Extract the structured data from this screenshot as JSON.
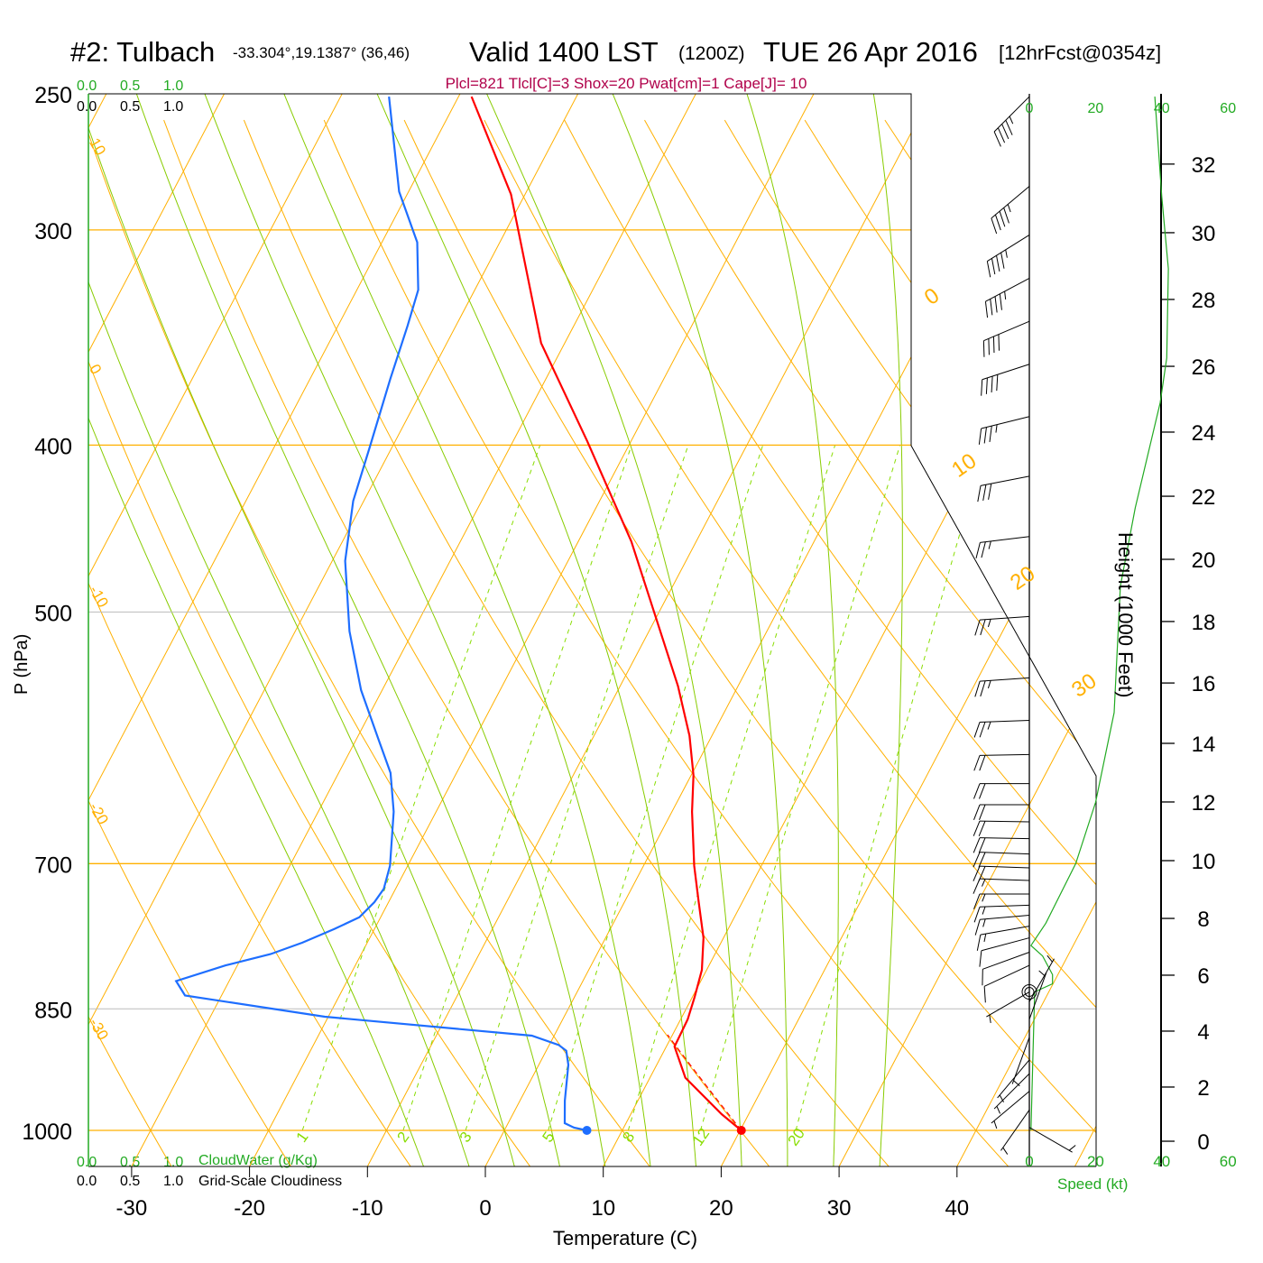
{
  "title": {
    "station": "#2: Tulbach",
    "coords": "-33.304°,19.1387° (36,46)",
    "valid": "Valid 1400 LST",
    "utc": "(1200Z)",
    "date": "TUE 26 Apr 2016",
    "forecast": "[12hrFcst@0354z]"
  },
  "indices": "Plcl=821 Tlcl[C]=3 Shox=20 Pwat[cm]=1 Cape[J]= 10",
  "cloud_axis": {
    "ticks": [
      "0.0",
      "0.5",
      "1.0"
    ],
    "cloudwater_label": "CloudWater (g/Kg)",
    "cloudiness_label": "Grid-Scale Cloudiness"
  },
  "colors": {
    "temperature": "#ff0000",
    "dewpoint": "#1e6eff",
    "isotherm": "#ffb000",
    "moist_adiabat": "#88cc00",
    "mixing_ratio": "#88dd00",
    "speed": "#22aa22",
    "indices": "#b0004a"
  },
  "chart_data": {
    "type": "skew-t",
    "xlabel": "Temperature (C)",
    "ylabel": "P (hPa)",
    "xlim": [
      -33.6,
      48
    ],
    "ylim": [
      1049,
      250
    ],
    "xticks": [
      -30,
      -20,
      -10,
      0,
      10,
      20,
      30,
      40
    ],
    "yticks": [
      250,
      300,
      400,
      500,
      700,
      850,
      1000
    ],
    "isobars_orange": [
      300,
      400,
      700,
      1000
    ],
    "isobars_gray": [
      500,
      850
    ],
    "isotherm_labels": [
      {
        "T": 0,
        "p": 332,
        "label": "0"
      },
      {
        "T": 10,
        "p": 418,
        "label": "10"
      },
      {
        "T": 20,
        "p": 486,
        "label": "20"
      },
      {
        "T": 30,
        "p": 561,
        "label": "30"
      }
    ],
    "dry_adiabat_labels": [
      "10",
      "0",
      "-10",
      "-20",
      "-30"
    ],
    "mixing_ratio_lines": [
      "1",
      "2",
      "3",
      "5",
      "8",
      "12",
      "20"
    ],
    "moist_adiabat_start_T": [
      -8,
      -4,
      0,
      4,
      8,
      12,
      16,
      20,
      24,
      28,
      32
    ],
    "temperature": {
      "p": [
        1000,
        978.5,
        932,
        894,
        862,
        837,
        807,
        773,
        737,
        702,
        653,
        622,
        590,
        552,
        455,
        398,
        349,
        286,
        251
      ],
      "T": [
        20.1,
        17.7,
        13.0,
        10.7,
        10.6,
        10.2,
        9.6,
        8.3,
        6.3,
        4.3,
        1.7,
        0.2,
        -1.9,
        -5.1,
        -15.5,
        -23.7,
        -32.0,
        -41.2,
        -48.9
      ]
    },
    "dewpoint": {
      "p": [
        996.4,
        990.4,
        961,
        916,
        899,
        892,
        881,
        859,
        835,
        819,
        802,
        790,
        778,
        764,
        752,
        737,
        724,
        702,
        653,
        620,
        593,
        555,
        513,
        467,
        431,
        401,
        366,
        341,
        325,
        305,
        285,
        251
      ],
      "Td": [
        5.8,
        4.8,
        3.8,
        2.5,
        1.7,
        0.8,
        -1.9,
        -20.3,
        -33.1,
        -34.5,
        -31.0,
        -27.7,
        -25.5,
        -23.4,
        -21.8,
        -21.2,
        -21.0,
        -21.5,
        -23.6,
        -25.6,
        -28.1,
        -31.8,
        -35.4,
        -38.9,
        -40.9,
        -41.9,
        -43.2,
        -44.1,
        -44.8,
        -47.0,
        -50.8,
        -55.9
      ]
    },
    "surface": {
      "p": 1000,
      "T": 20.1,
      "Td": 7.0
    },
    "height_axis": {
      "label": "Height (1000 Feet)",
      "ticks": [
        {
          "kft": "0",
          "p": 1014.6
        },
        {
          "kft": "2",
          "p": 943.7
        },
        {
          "kft": "4",
          "p": 875.7
        },
        {
          "kft": "6",
          "p": 812.6
        },
        {
          "kft": "8",
          "p": 753.2
        },
        {
          "kft": "10",
          "p": 697.2
        },
        {
          "kft": "12",
          "p": 644.6
        },
        {
          "kft": "14",
          "p": 596
        },
        {
          "kft": "16",
          "p": 549.8
        },
        {
          "kft": "18",
          "p": 506.4
        },
        {
          "kft": "20",
          "p": 466
        },
        {
          "kft": "22",
          "p": 428.3
        },
        {
          "kft": "24",
          "p": 393.1
        },
        {
          "kft": "26",
          "p": 360
        },
        {
          "kft": "28",
          "p": 329.2
        },
        {
          "kft": "30",
          "p": 301.1
        },
        {
          "kft": "32",
          "p": 274.7
        }
      ]
    },
    "speed_axis": {
      "label": "Speed (kt)",
      "ticks": [
        "0",
        "20",
        "40",
        "60"
      ],
      "xlim": [
        0,
        60
      ]
    },
    "speed_profile": {
      "p": [
        251,
        287,
        316,
        356,
        378,
        435,
        483,
        572,
        645,
        700,
        758,
        781,
        792,
        812,
        822,
        831,
        916,
        1000
      ],
      "kt": [
        37.9,
        40,
        42,
        41.5,
        39.5,
        32,
        27.5,
        25.6,
        20,
        14,
        5,
        0.5,
        4,
        7,
        7,
        1.6,
        1,
        0.5
      ]
    },
    "wind_barbs": [
      {
        "p": 251,
        "dir": 225,
        "kt": 45
      },
      {
        "p": 283,
        "dir": 230,
        "kt": 45
      },
      {
        "p": 302,
        "dir": 238,
        "kt": 45
      },
      {
        "p": 320,
        "dir": 242,
        "kt": 45
      },
      {
        "p": 339,
        "dir": 247,
        "kt": 40
      },
      {
        "p": 359,
        "dir": 252,
        "kt": 40
      },
      {
        "p": 385,
        "dir": 256,
        "kt": 35
      },
      {
        "p": 417,
        "dir": 259,
        "kt": 30
      },
      {
        "p": 452,
        "dir": 263,
        "kt": 25
      },
      {
        "p": 503,
        "dir": 266,
        "kt": 25
      },
      {
        "p": 546,
        "dir": 266,
        "kt": 25
      },
      {
        "p": 578,
        "dir": 268,
        "kt": 25
      },
      {
        "p": 605,
        "dir": 269,
        "kt": 20
      },
      {
        "p": 629,
        "dir": 270,
        "kt": 20
      },
      {
        "p": 647,
        "dir": 270,
        "kt": 20
      },
      {
        "p": 662,
        "dir": 271,
        "kt": 20
      },
      {
        "p": 677,
        "dir": 271,
        "kt": 20
      },
      {
        "p": 691,
        "dir": 272,
        "kt": 20
      },
      {
        "p": 704,
        "dir": 272,
        "kt": 20
      },
      {
        "p": 716,
        "dir": 272,
        "kt": 15
      },
      {
        "p": 729,
        "dir": 270,
        "kt": 15
      },
      {
        "p": 740,
        "dir": 268,
        "kt": 15
      },
      {
        "p": 750,
        "dir": 265,
        "kt": 15
      },
      {
        "p": 761,
        "dir": 260,
        "kt": 15
      },
      {
        "p": 773,
        "dir": 255,
        "kt": 10
      },
      {
        "p": 788,
        "dir": 250,
        "kt": 10
      },
      {
        "p": 802,
        "dir": 245,
        "kt": 10
      },
      {
        "p": 831,
        "dir": 240,
        "kt": 5
      },
      {
        "p": 842,
        "dir": 30,
        "kt": 5
      },
      {
        "p": 862,
        "dir": 20,
        "kt": 5
      },
      {
        "p": 883,
        "dir": 200,
        "kt": 5
      },
      {
        "p": 910,
        "dir": 220,
        "kt": 5
      },
      {
        "p": 927,
        "dir": 225,
        "kt": 5
      },
      {
        "p": 949,
        "dir": 230,
        "kt": 5
      },
      {
        "p": 973,
        "dir": 215,
        "kt": 5
      },
      {
        "p": 996,
        "dir": 120,
        "kt": 3
      }
    ]
  }
}
